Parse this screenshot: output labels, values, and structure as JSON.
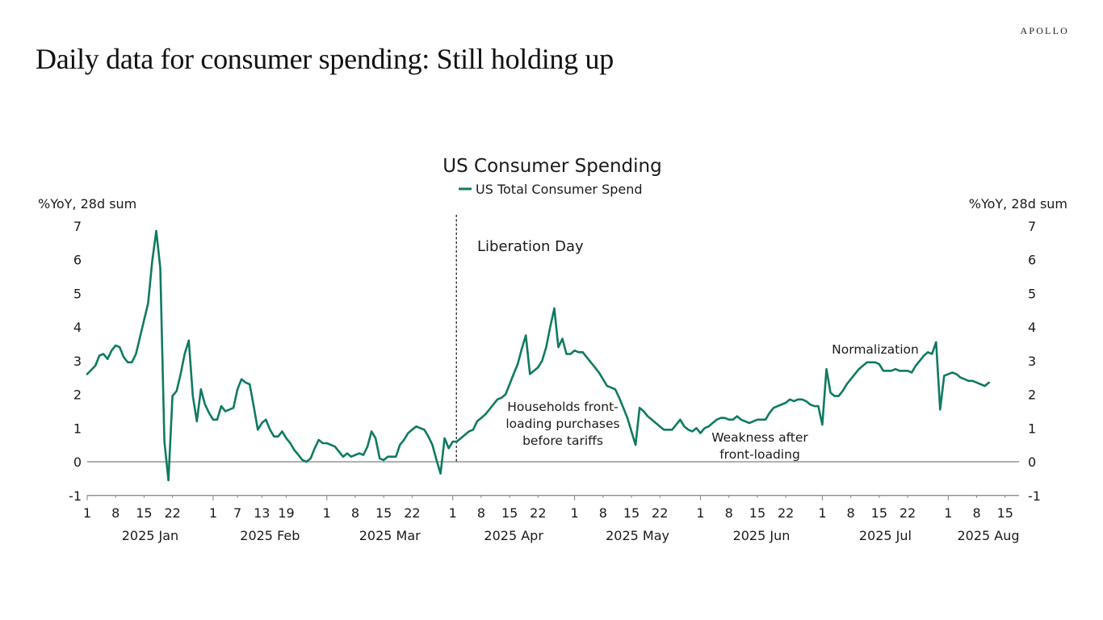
{
  "header": {
    "brand": "APOLLO",
    "title": "Daily data for consumer spending: Still holding up"
  },
  "colors": {
    "series": "#0f7a62",
    "axis": "#808080",
    "zero_line": "#808080"
  },
  "chart_data": {
    "type": "line",
    "title": "US Consumer Spending",
    "legend": [
      "US Total Consumer Spend"
    ],
    "legend_position": "top-center",
    "ylabel_left": "%YoY, 28d sum",
    "ylabel_right": "%YoY, 28d sum",
    "ylim": [
      -1,
      7
    ],
    "yticks": [
      -1,
      0,
      1,
      2,
      3,
      4,
      5,
      6,
      7
    ],
    "grid": false,
    "x_start": "2025-01-01",
    "x_end": "2025-08-15",
    "x_tick_groups": [
      {
        "month": "2025 Jan",
        "days": [
          "1",
          "8",
          "15",
          "22"
        ]
      },
      {
        "month": "2025 Feb",
        "days": [
          "1",
          "7",
          "13",
          "19"
        ]
      },
      {
        "month": "2025 Mar",
        "days": [
          "1",
          "8",
          "15",
          "22"
        ]
      },
      {
        "month": "2025 Apr",
        "days": [
          "1",
          "8",
          "15",
          "22"
        ]
      },
      {
        "month": "2025 May",
        "days": [
          "1",
          "8",
          "15",
          "22"
        ]
      },
      {
        "month": "2025 Jun",
        "days": [
          "1",
          "8",
          "15",
          "22"
        ]
      },
      {
        "month": "2025 Jul",
        "days": [
          "1",
          "8",
          "15",
          "22"
        ]
      },
      {
        "month": "2025 Aug",
        "days": [
          "1",
          "8",
          "15"
        ]
      }
    ],
    "vline": {
      "date": "2025-04-02",
      "label": "Liberation Day"
    },
    "annotations": [
      {
        "text_lines": [
          "Households front-",
          "loading purchases",
          "before tariffs"
        ],
        "near_date": "2025-04-24"
      },
      {
        "text_lines": [
          "Weakness after",
          "front-loading"
        ],
        "near_date": "2025-06-07"
      },
      {
        "text_lines": [
          "Normalization"
        ],
        "near_date": "2025-07-10"
      }
    ],
    "series": [
      {
        "name": "US Total Consumer Spend",
        "x_day_offset": [
          0,
          2,
          3,
          4,
          5,
          6,
          7,
          8,
          9,
          10,
          11,
          12,
          13,
          14,
          15,
          16,
          17,
          18,
          19,
          20,
          21,
          22,
          23,
          24,
          25,
          26,
          27,
          28,
          29,
          30,
          31,
          32,
          33,
          34,
          35,
          36,
          37,
          38,
          39,
          40,
          41,
          42,
          43,
          44,
          45,
          46,
          47,
          48,
          49,
          50,
          51,
          52,
          53,
          54,
          55,
          56,
          57,
          58,
          59,
          60,
          61,
          62,
          63,
          64,
          65,
          66,
          67,
          68,
          69,
          70,
          71,
          72,
          73,
          74,
          75,
          76,
          77,
          78,
          79,
          80,
          81,
          82,
          83,
          84,
          85,
          86,
          87,
          88,
          89,
          90,
          91,
          92,
          93,
          94,
          95,
          96,
          97,
          98,
          99,
          100,
          101,
          102,
          103,
          104,
          105,
          106,
          107,
          108,
          109,
          110,
          111,
          112,
          113,
          114,
          115,
          116,
          117,
          118,
          119,
          120,
          121,
          122,
          123,
          124,
          125,
          126,
          127,
          128,
          129,
          130,
          131,
          132,
          133,
          134,
          135,
          136,
          137,
          138,
          139,
          140,
          141,
          142,
          143,
          144,
          145,
          146,
          147,
          148,
          149,
          150,
          151,
          152,
          153,
          154,
          155,
          156,
          157,
          158,
          159,
          160,
          161,
          162,
          163,
          164,
          165,
          166,
          167,
          168,
          169,
          170,
          171,
          172,
          173,
          174,
          175,
          176,
          177,
          178,
          179,
          180,
          181,
          182,
          183,
          184,
          185,
          186,
          187,
          188,
          189,
          190,
          191,
          192,
          193,
          194,
          195,
          196,
          197,
          198,
          199,
          200,
          201,
          202,
          203,
          204,
          205,
          206,
          207,
          208,
          209,
          210,
          211,
          212,
          213,
          214,
          215,
          216,
          217,
          218,
          219,
          220,
          221,
          222,
          223,
          224
        ],
        "values": [
          2.6,
          2.85,
          3.15,
          3.2,
          3.05,
          3.3,
          3.45,
          3.4,
          3.1,
          2.95,
          2.95,
          3.2,
          3.7,
          4.2,
          4.7,
          5.95,
          6.85,
          5.75,
          0.6,
          -0.55,
          1.95,
          2.1,
          2.6,
          3.2,
          3.6,
          1.95,
          1.2,
          2.15,
          1.7,
          1.45,
          1.25,
          1.25,
          1.65,
          1.5,
          1.55,
          1.6,
          2.15,
          2.45,
          2.35,
          2.3,
          1.65,
          0.95,
          1.15,
          1.25,
          0.95,
          0.75,
          0.75,
          0.9,
          0.7,
          0.55,
          0.35,
          0.2,
          0.05,
          0.0,
          0.1,
          0.4,
          0.65,
          0.55,
          0.55,
          0.5,
          0.45,
          0.3,
          0.15,
          0.25,
          0.15,
          0.2,
          0.25,
          0.2,
          0.45,
          0.9,
          0.7,
          0.1,
          0.05,
          0.15,
          0.15,
          0.15,
          0.5,
          0.65,
          0.85,
          0.95,
          1.05,
          1.0,
          0.95,
          0.75,
          0.5,
          0.05,
          -0.35,
          0.7,
          0.4,
          0.6,
          0.6,
          0.7,
          0.8,
          0.9,
          0.95,
          1.2,
          1.3,
          1.4,
          1.55,
          1.7,
          1.85,
          1.9,
          2.0,
          2.3,
          2.6,
          2.9,
          3.35,
          3.75,
          2.6,
          2.7,
          2.8,
          3.0,
          3.4,
          4.0,
          4.55,
          3.4,
          3.65,
          3.2,
          3.2,
          3.3,
          3.25,
          3.25,
          3.1,
          2.95,
          2.8,
          2.65,
          2.45,
          2.25,
          2.2,
          2.15,
          1.9,
          1.6,
          1.3,
          0.9,
          0.5,
          1.6,
          1.5,
          1.35,
          1.25,
          1.15,
          1.05,
          0.95,
          0.95,
          0.95,
          1.1,
          1.25,
          1.05,
          0.95,
          0.9,
          1.0,
          0.85,
          1.0,
          1.05,
          1.15,
          1.25,
          1.3,
          1.3,
          1.25,
          1.25,
          1.35,
          1.25,
          1.2,
          1.15,
          1.2,
          1.25,
          1.25,
          1.25,
          1.45,
          1.6,
          1.65,
          1.7,
          1.75,
          1.85,
          1.8,
          1.85,
          1.85,
          1.8,
          1.7,
          1.65,
          1.65,
          1.1,
          2.75,
          2.05,
          1.95,
          1.95,
          2.1,
          2.3,
          2.45,
          2.6,
          2.75,
          2.85,
          2.95,
          2.95,
          2.95,
          2.9,
          2.7,
          2.7,
          2.7,
          2.75,
          2.7,
          2.7,
          2.7,
          2.65,
          2.85,
          3.0,
          3.15,
          3.25,
          3.2,
          3.55,
          1.55,
          2.55,
          2.6,
          2.65,
          2.6,
          2.5,
          2.45,
          2.4,
          2.4,
          2.35,
          2.3,
          2.25,
          2.35
        ]
      }
    ]
  }
}
